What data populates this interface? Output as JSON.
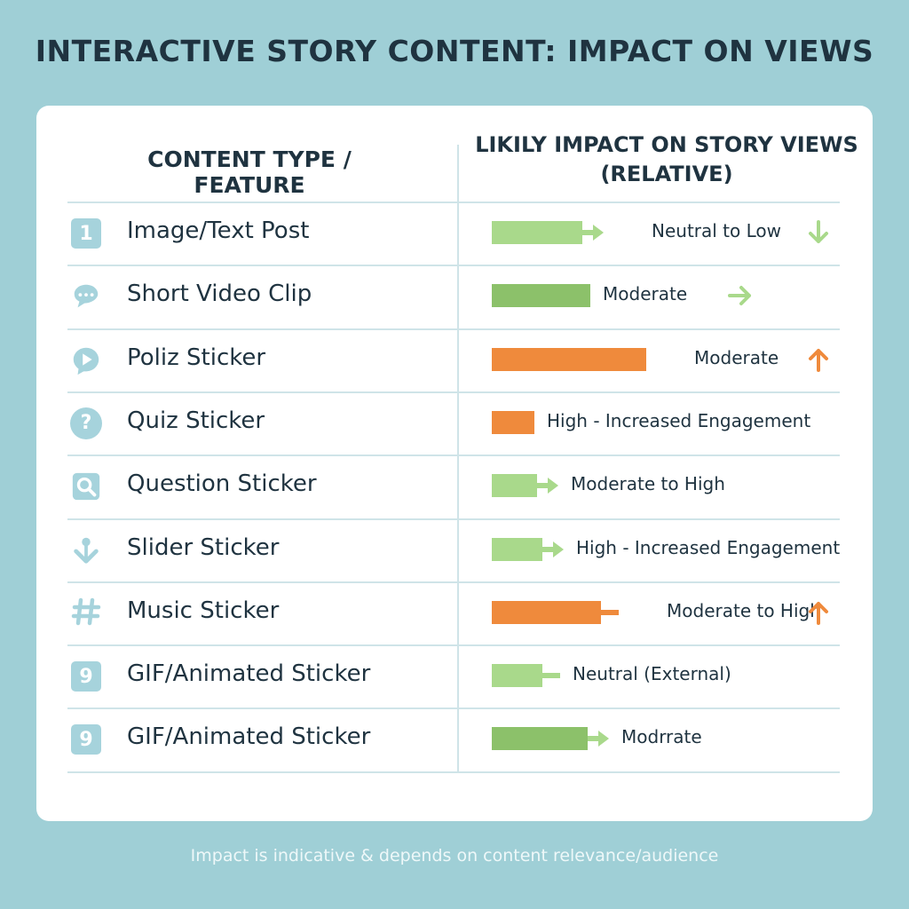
{
  "title": "INTERACTIVE STORY CONTENT: IMPACT ON VIEWS",
  "footnote": "Impact is indicative & depends on content relevance/audience",
  "colors": {
    "background": "#9fcfd6",
    "light_green": "#a9d98b",
    "green": "#8cc16a",
    "orange": "#ef8a3c",
    "icon": "#a6d3dc",
    "text": "#1f3340"
  },
  "chart_data": {
    "type": "table",
    "columns": [
      "CONTENT TYPE / FEATURE",
      "LIKILY IMPACT ON STORY VIEWS (RELATIVE)"
    ],
    "rows": [
      {
        "icon": "number-1-icon",
        "glyph": "1",
        "feature": "Image/Text Post",
        "impact": "Neutral to Low",
        "color": "light_green",
        "bar": 0.34,
        "tail": "arrow",
        "trend": "down"
      },
      {
        "icon": "speech-bubble-icon",
        "glyph": "",
        "feature": "Short Video Clip",
        "impact": "Moderate",
        "color": "green",
        "bar": 0.37,
        "tail": "none",
        "trend": "right"
      },
      {
        "icon": "play-bubble-icon",
        "glyph": "",
        "feature": "Poliz Sticker",
        "impact": "Moderate",
        "color": "orange",
        "bar": 0.58,
        "tail": "none",
        "trend": "up"
      },
      {
        "icon": "question-mark-icon",
        "glyph": "?",
        "feature": "Quiz Sticker",
        "impact": "High - Increased Engagement",
        "color": "orange",
        "bar": 0.16,
        "tail": "none",
        "trend": "none"
      },
      {
        "icon": "magnifier-icon",
        "glyph": "",
        "feature": "Question Sticker",
        "impact": "Moderate to High",
        "color": "light_green",
        "bar": 0.17,
        "tail": "arrow",
        "trend": "none"
      },
      {
        "icon": "down-arrow-icon",
        "glyph": "",
        "feature": "Slider Sticker",
        "impact": "High - Increased Engagement",
        "color": "light_green",
        "bar": 0.19,
        "tail": "arrow",
        "trend": "none"
      },
      {
        "icon": "hashtag-icon",
        "glyph": "#",
        "feature": "Music Sticker",
        "impact": "Moderate to High",
        "color": "orange",
        "bar": 0.41,
        "tail": "stem",
        "trend": "up"
      },
      {
        "icon": "number-9-icon",
        "glyph": "9",
        "feature": "GIF/Animated Sticker",
        "impact": "Neutral (External)",
        "color": "light_green",
        "bar": 0.19,
        "tail": "stem",
        "trend": "none"
      },
      {
        "icon": "number-9-icon",
        "glyph": "9",
        "feature": "GIF/Animated Sticker",
        "impact": "Modrrate",
        "color": "green",
        "bar": 0.36,
        "tail": "arrow",
        "trend": "none"
      }
    ]
  }
}
